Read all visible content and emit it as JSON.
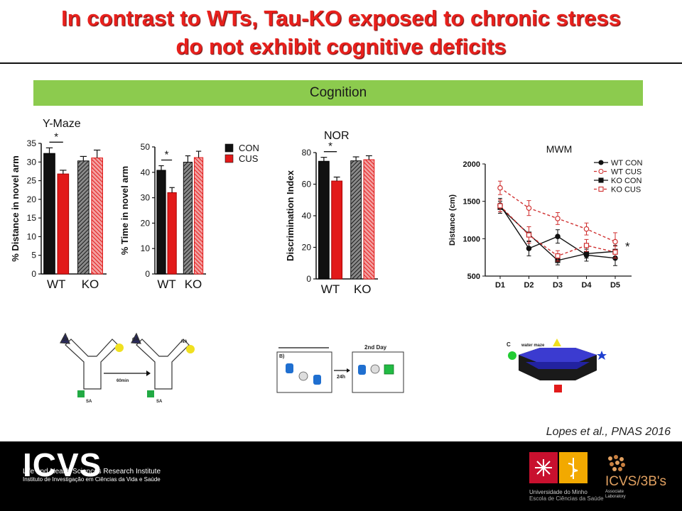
{
  "title": {
    "line1": "In contrast to WTs, Tau-KO exposed to chronic stress",
    "line2": "do not exhibit cognitive deficits"
  },
  "banner": {
    "label": "Cognition"
  },
  "colors": {
    "title": "#e8201c",
    "banner": "#8ccb4e",
    "con": "#111111",
    "cus": "#e21a1a",
    "ko_hatch": "#9a9a9a"
  },
  "chart_data": [
    {
      "type": "bar",
      "title": "Y-Maze",
      "ylabel": "% Distance in novel arm",
      "ylim": [
        0,
        35
      ],
      "yticks": [
        "0",
        "5",
        "10",
        "15",
        "20",
        "25",
        "30",
        "35"
      ],
      "groups": [
        "WT",
        "KO"
      ],
      "series": [
        {
          "name": "CON",
          "values": [
            32.3,
            30.3
          ],
          "errors": [
            1.5,
            1.2
          ]
        },
        {
          "name": "CUS",
          "values": [
            26.8,
            31.1
          ],
          "errors": [
            1.0,
            2.1
          ]
        }
      ],
      "significance": "*"
    },
    {
      "type": "bar",
      "title": "",
      "ylabel": "% Time in novel arm",
      "ylim": [
        0,
        50
      ],
      "yticks": [
        "0",
        "10",
        "20",
        "30",
        "40",
        "50"
      ],
      "groups": [
        "WT",
        "KO"
      ],
      "series": [
        {
          "name": "CON",
          "values": [
            40.8,
            44.0
          ],
          "errors": [
            1.8,
            2.5
          ]
        },
        {
          "name": "CUS",
          "values": [
            32.0,
            45.8
          ],
          "errors": [
            2.0,
            2.5
          ]
        }
      ],
      "significance": "*",
      "legend": [
        {
          "label": "CON"
        },
        {
          "label": "CUS"
        }
      ]
    },
    {
      "type": "bar",
      "title": "NOR",
      "ylabel": "Discrimination Index",
      "ylim": [
        0,
        80
      ],
      "yticks": [
        "0",
        "20",
        "40",
        "60",
        "80"
      ],
      "groups": [
        "WT",
        "KO"
      ],
      "series": [
        {
          "name": "CON",
          "values": [
            74.5,
            74.8
          ],
          "errors": [
            2.5,
            2.5
          ]
        },
        {
          "name": "CUS",
          "values": [
            62.0,
            75.5
          ],
          "errors": [
            2.5,
            2.5
          ]
        }
      ],
      "significance": "*"
    },
    {
      "type": "line",
      "title": "MWM",
      "ylabel": "Distance (cm)",
      "categories": [
        "D1",
        "D2",
        "D3",
        "D4",
        "D5"
      ],
      "ylim": [
        500,
        2000
      ],
      "yticks": [
        "500",
        "1000",
        "1500",
        "2000"
      ],
      "series": [
        {
          "name": "WT CON",
          "values": [
            1450,
            870,
            1030,
            780,
            740
          ],
          "errors": [
            90,
            100,
            90,
            80,
            100
          ]
        },
        {
          "name": "WT CUS",
          "values": [
            1680,
            1410,
            1270,
            1130,
            960
          ],
          "errors": [
            90,
            100,
            80,
            80,
            120
          ]
        },
        {
          "name": "KO CON",
          "values": [
            1420,
            1060,
            710,
            800,
            830
          ],
          "errors": [
            80,
            100,
            60,
            60,
            80
          ]
        },
        {
          "name": "KO CUS",
          "values": [
            1440,
            1050,
            770,
            910,
            820
          ],
          "errors": [
            80,
            110,
            70,
            80,
            80
          ]
        }
      ],
      "significance": "*"
    }
  ],
  "schematics": {
    "ymaze_labels": {
      "oa1": "OA",
      "oa2": "OA",
      "na": "NA",
      "sa1": "SA",
      "sa2": "SA",
      "time": "60min"
    },
    "nor_labels": {
      "panel": "B)",
      "day": "2nd Day",
      "time": "24h"
    },
    "mwm_labels": {
      "panel": "C",
      "title": "water maze"
    }
  },
  "citation": "Lopes et al., PNAS 2016",
  "footer": {
    "icvs": "ICVS",
    "icvs_line1": "Life and Health Sciences Research Institute",
    "icvs_line2": "Instituto de Investigação em Ciências da Vida e Saúde",
    "um_line1": "Universidade do Minho",
    "um_line2": "Escola de Ciências da Saúde",
    "icvs3b": "ICVS/3B's",
    "icvs3b_sub1": "Associate",
    "icvs3b_sub2": "Laboratory"
  }
}
